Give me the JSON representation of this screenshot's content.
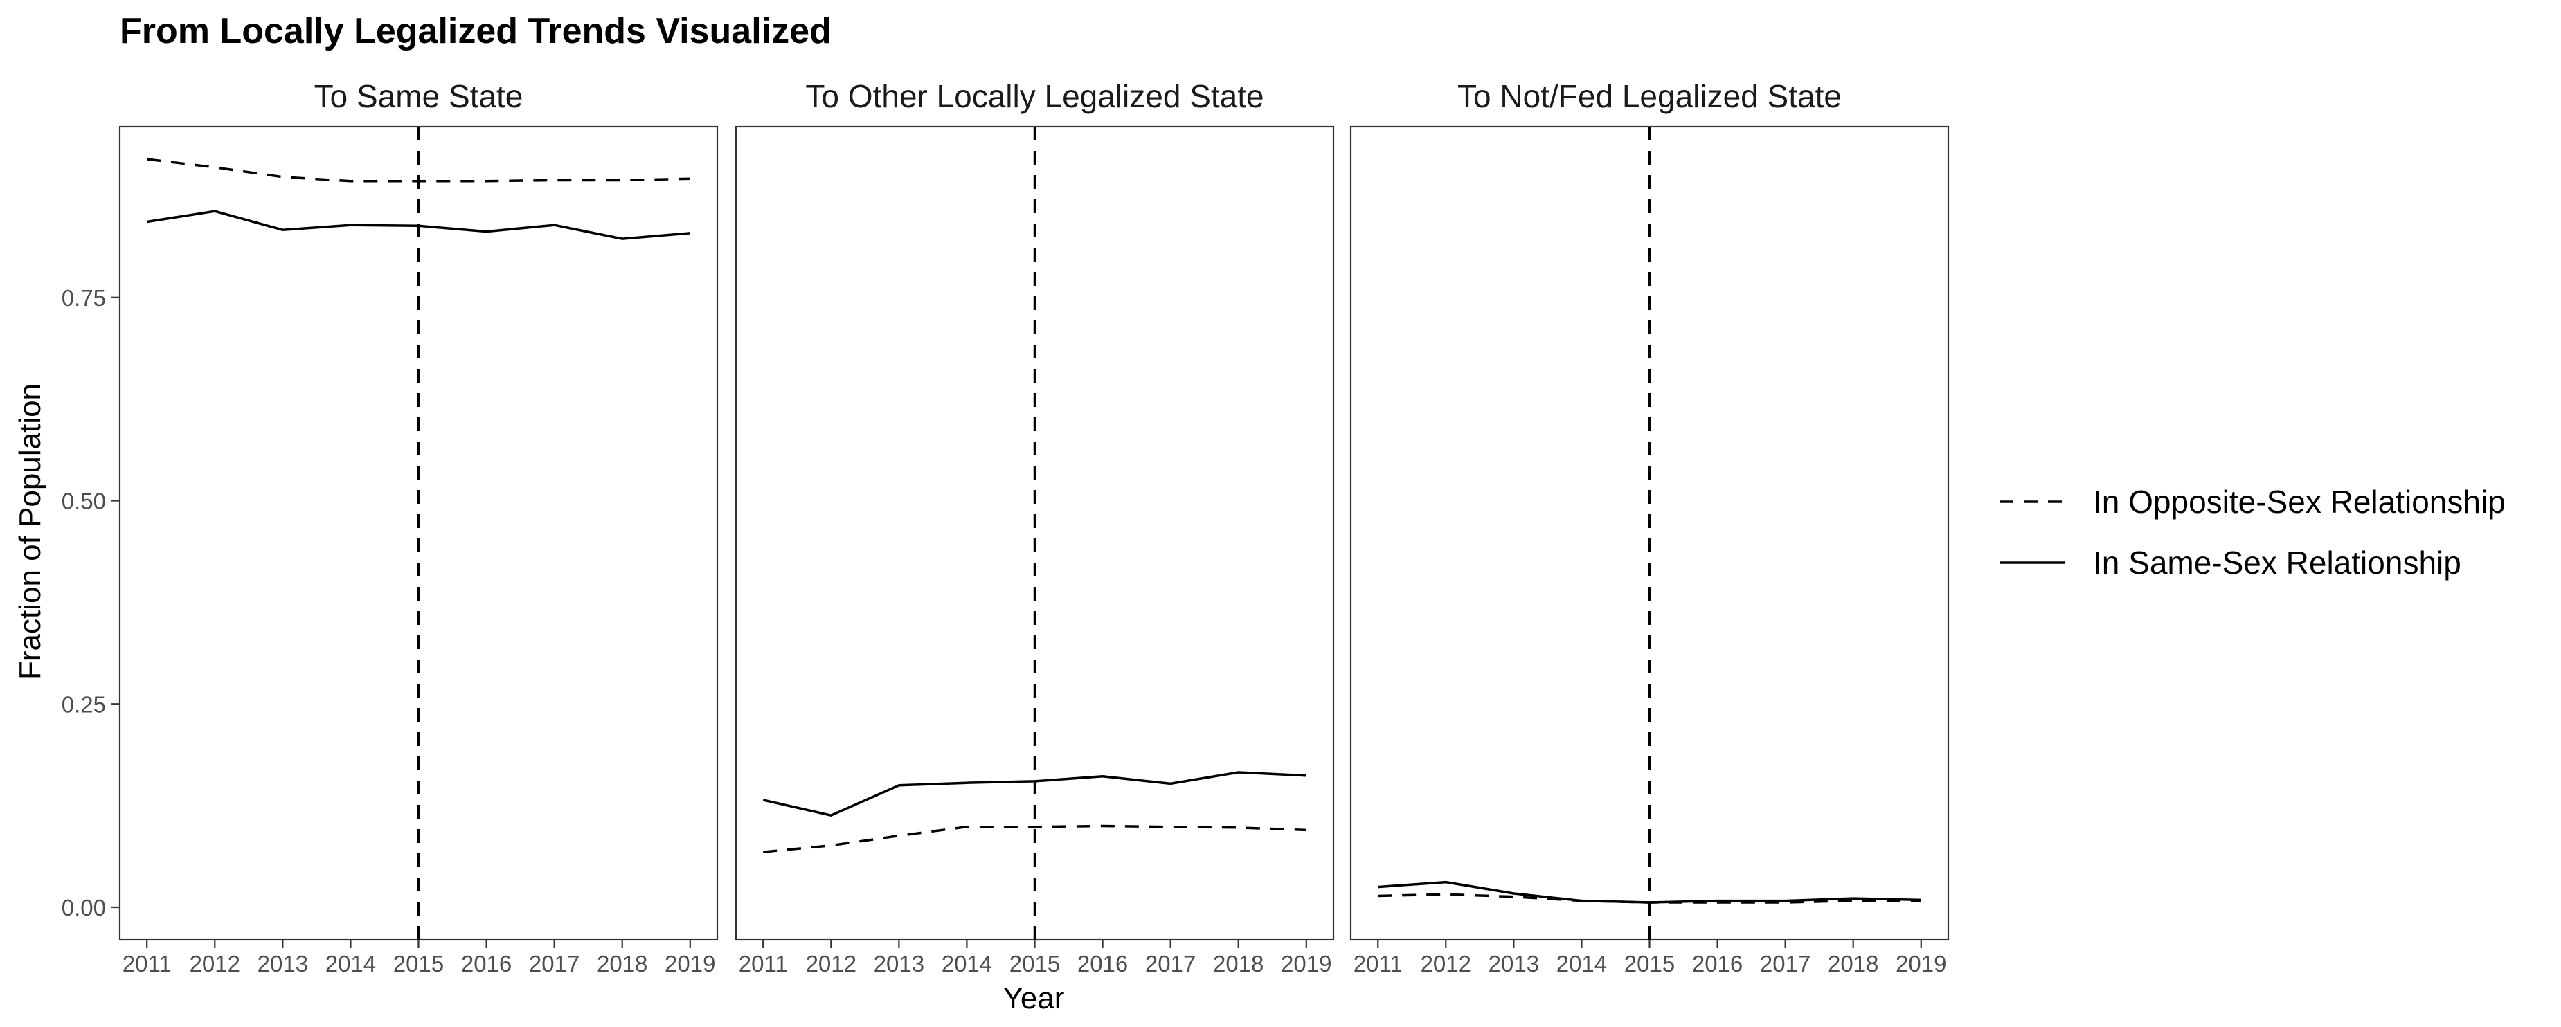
{
  "chart_data": {
    "type": "line",
    "title": "From Locally Legalized Trends Visualized",
    "xlabel": "Year",
    "ylabel": "Fraction of Population",
    "x": [
      2011,
      2012,
      2013,
      2014,
      2015,
      2016,
      2017,
      2018,
      2019
    ],
    "xlim": [
      2010.6,
      2019.4
    ],
    "ylim": [
      -0.04,
      0.96
    ],
    "y_ticks": [
      0.0,
      0.25,
      0.5,
      0.75
    ],
    "y_tick_labels": [
      "0.00",
      "0.25",
      "0.50",
      "0.75"
    ],
    "reference_line_x": 2015,
    "grid": false,
    "legend_position": "right",
    "legend": [
      {
        "label": "In Opposite-Sex Relationship",
        "style": "dashed"
      },
      {
        "label": "In Same-Sex Relationship",
        "style": "solid"
      }
    ],
    "panels": [
      {
        "title": "To Same State",
        "series": [
          {
            "name": "In Opposite-Sex Relationship",
            "style": "dashed",
            "values": [
              0.92,
              0.91,
              0.898,
              0.893,
              0.893,
              0.893,
              0.894,
              0.894,
              0.896
            ]
          },
          {
            "name": "In Same-Sex Relationship",
            "style": "solid",
            "values": [
              0.843,
              0.856,
              0.833,
              0.839,
              0.838,
              0.831,
              0.839,
              0.822,
              0.829
            ]
          }
        ]
      },
      {
        "title": "To Other Locally Legalized State",
        "series": [
          {
            "name": "In Opposite-Sex Relationship",
            "style": "dashed",
            "values": [
              0.068,
              0.076,
              0.088,
              0.099,
              0.099,
              0.1,
              0.099,
              0.098,
              0.095
            ]
          },
          {
            "name": "In Same-Sex Relationship",
            "style": "solid",
            "values": [
              0.132,
              0.113,
              0.15,
              0.153,
              0.155,
              0.161,
              0.152,
              0.166,
              0.162
            ]
          }
        ]
      },
      {
        "title": "To Not/Fed Legalized State",
        "series": [
          {
            "name": "In Opposite-Sex Relationship",
            "style": "dashed",
            "values": [
              0.014,
              0.016,
              0.013,
              0.008,
              0.006,
              0.006,
              0.006,
              0.008,
              0.008
            ]
          },
          {
            "name": "In Same-Sex Relationship",
            "style": "solid",
            "values": [
              0.025,
              0.031,
              0.017,
              0.008,
              0.006,
              0.008,
              0.008,
              0.011,
              0.009
            ]
          }
        ]
      }
    ]
  }
}
